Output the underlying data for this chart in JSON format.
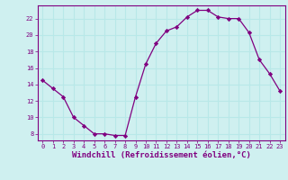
{
  "x": [
    0,
    1,
    2,
    3,
    4,
    5,
    6,
    7,
    8,
    9,
    10,
    11,
    12,
    13,
    14,
    15,
    16,
    17,
    18,
    19,
    20,
    21,
    22,
    23
  ],
  "y": [
    14.5,
    13.5,
    12.5,
    10.0,
    9.0,
    8.0,
    8.0,
    7.8,
    7.8,
    12.5,
    16.5,
    19.0,
    20.5,
    21.0,
    22.2,
    23.0,
    23.0,
    22.2,
    22.0,
    22.0,
    20.3,
    17.0,
    15.3,
    13.2
  ],
  "line_color": "#800080",
  "marker": "D",
  "marker_size": 2.2,
  "xlabel": "Windchill (Refroidissement éolien,°C)",
  "xlabel_fontsize": 6.5,
  "xlim": [
    -0.5,
    23.5
  ],
  "ylim": [
    7.2,
    23.6
  ],
  "yticks": [
    8,
    10,
    12,
    14,
    16,
    18,
    20,
    22
  ],
  "xticks": [
    0,
    1,
    2,
    3,
    4,
    5,
    6,
    7,
    8,
    9,
    10,
    11,
    12,
    13,
    14,
    15,
    16,
    17,
    18,
    19,
    20,
    21,
    22,
    23
  ],
  "bg_color": "#cff0f0",
  "grid_color": "#b8e8e8",
  "spine_color": "#800080",
  "tick_color": "#800080",
  "label_color": "#800080"
}
